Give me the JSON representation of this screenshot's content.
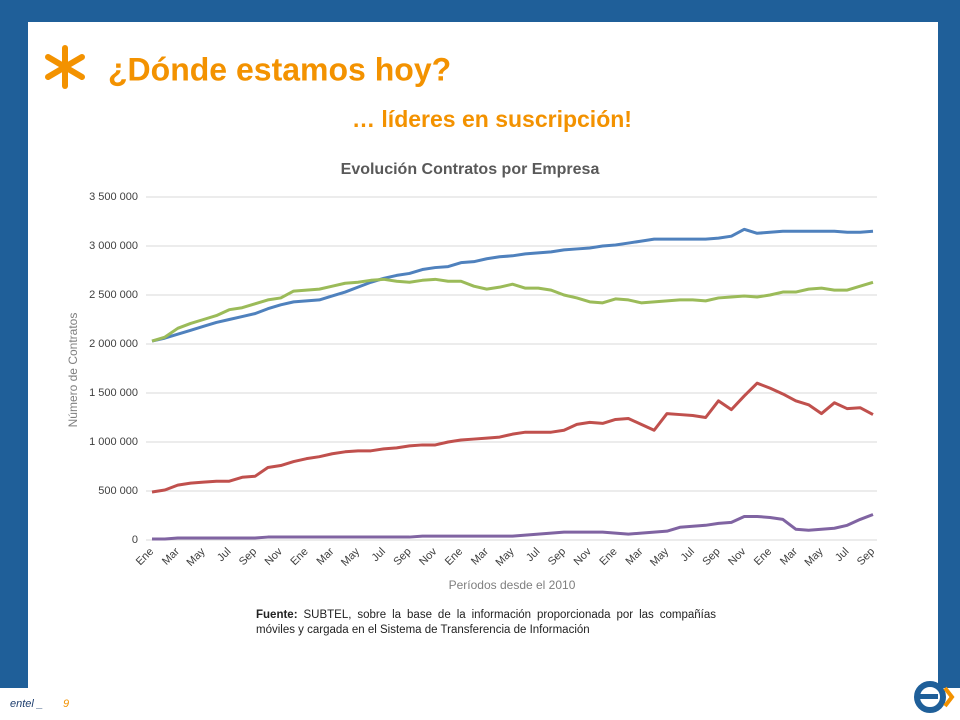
{
  "slide": {
    "title": "¿Dónde estamos hoy?",
    "subtitle": "… líderes en suscripción!",
    "source_label": "Fuente:",
    "source_text": "SUBTEL, sobre la base de la información proporcionada por las compañías móviles y cargada en el Sistema de Transferencia de Información",
    "footer_brand": "entel _",
    "page_number": "9"
  },
  "chart_data": {
    "type": "line",
    "title": "Evolución Contratos por Empresa",
    "x_label": "Períodos desde el 2010",
    "y_label": "Número de Contratos",
    "categories": [
      "Ene",
      null,
      "Mar",
      null,
      "May",
      null,
      "Jul",
      null,
      "Sep",
      null,
      "Nov",
      null,
      "Ene",
      null,
      "Mar",
      null,
      "May",
      null,
      "Jul",
      null,
      "Sep",
      null,
      "Nov",
      null,
      "Ene",
      null,
      "Mar",
      null,
      "May",
      null,
      "Jul",
      null,
      "Sep",
      null,
      "Nov",
      null,
      "Ene",
      null,
      "Mar",
      null,
      "May",
      null,
      "Jul",
      null,
      "Sep",
      null,
      "Nov",
      null,
      "Ene",
      null,
      "Mar",
      null,
      "May",
      null,
      "Jul",
      null,
      "Sep"
    ],
    "ylim": [
      0,
      3500000
    ],
    "yticks": [
      0,
      {
        "value": 500000,
        "label": "500 000"
      },
      {
        "value": 1000000,
        "label": "1 000 000"
      },
      {
        "value": 1500000,
        "label": "1 500 000"
      },
      {
        "value": 2000000,
        "label": "2 000 000"
      },
      {
        "value": 2500000,
        "label": "2 500 000"
      },
      {
        "value": 3000000,
        "label": "3 000 000"
      },
      {
        "value": 3500000,
        "label": "3 500 000"
      }
    ],
    "grid": true,
    "series": [
      {
        "color": "#4f81bd",
        "values": [
          2030000,
          2060000,
          2100000,
          2140000,
          2180000,
          2220000,
          2250000,
          2280000,
          2310000,
          2360000,
          2400000,
          2430000,
          2440000,
          2450000,
          2490000,
          2530000,
          2580000,
          2630000,
          2670000,
          2700000,
          2720000,
          2760000,
          2780000,
          2790000,
          2830000,
          2840000,
          2870000,
          2890000,
          2900000,
          2920000,
          2930000,
          2940000,
          2960000,
          2970000,
          2980000,
          3000000,
          3010000,
          3030000,
          3050000,
          3070000,
          3070000,
          3070000,
          3070000,
          3070000,
          3080000,
          3100000,
          3170000,
          3130000,
          3140000,
          3150000,
          3150000,
          3150000,
          3150000,
          3150000,
          3140000,
          3140000,
          3150000
        ]
      },
      {
        "color": "#9bbb59",
        "values": [
          2030000,
          2070000,
          2160000,
          2210000,
          2250000,
          2290000,
          2350000,
          2370000,
          2410000,
          2450000,
          2470000,
          2540000,
          2550000,
          2560000,
          2590000,
          2620000,
          2630000,
          2650000,
          2660000,
          2640000,
          2630000,
          2650000,
          2660000,
          2640000,
          2640000,
          2590000,
          2560000,
          2580000,
          2610000,
          2570000,
          2570000,
          2550000,
          2500000,
          2470000,
          2430000,
          2420000,
          2460000,
          2450000,
          2420000,
          2430000,
          2440000,
          2450000,
          2450000,
          2440000,
          2470000,
          2480000,
          2490000,
          2480000,
          2500000,
          2530000,
          2530000,
          2560000,
          2570000,
          2550000,
          2550000,
          2590000,
          2630000
        ]
      },
      {
        "color": "#c0504d",
        "values": [
          490000,
          510000,
          560000,
          580000,
          590000,
          600000,
          600000,
          640000,
          650000,
          740000,
          760000,
          800000,
          830000,
          850000,
          880000,
          900000,
          910000,
          910000,
          930000,
          940000,
          960000,
          970000,
          970000,
          1000000,
          1020000,
          1030000,
          1040000,
          1050000,
          1080000,
          1100000,
          1100000,
          1100000,
          1120000,
          1180000,
          1200000,
          1190000,
          1230000,
          1240000,
          1180000,
          1120000,
          1290000,
          1280000,
          1270000,
          1250000,
          1420000,
          1330000,
          1470000,
          1600000,
          1550000,
          1490000,
          1420000,
          1380000,
          1290000,
          1400000,
          1340000,
          1350000,
          1280000
        ]
      },
      {
        "color": "#8064a2",
        "values": [
          10000,
          10000,
          20000,
          20000,
          20000,
          20000,
          20000,
          20000,
          20000,
          30000,
          30000,
          30000,
          30000,
          30000,
          30000,
          30000,
          30000,
          30000,
          30000,
          30000,
          30000,
          40000,
          40000,
          40000,
          40000,
          40000,
          40000,
          40000,
          40000,
          50000,
          60000,
          70000,
          80000,
          80000,
          80000,
          80000,
          70000,
          60000,
          70000,
          80000,
          90000,
          130000,
          140000,
          150000,
          170000,
          180000,
          240000,
          240000,
          230000,
          210000,
          110000,
          100000,
          110000,
          120000,
          150000,
          210000,
          260000
        ]
      }
    ]
  }
}
